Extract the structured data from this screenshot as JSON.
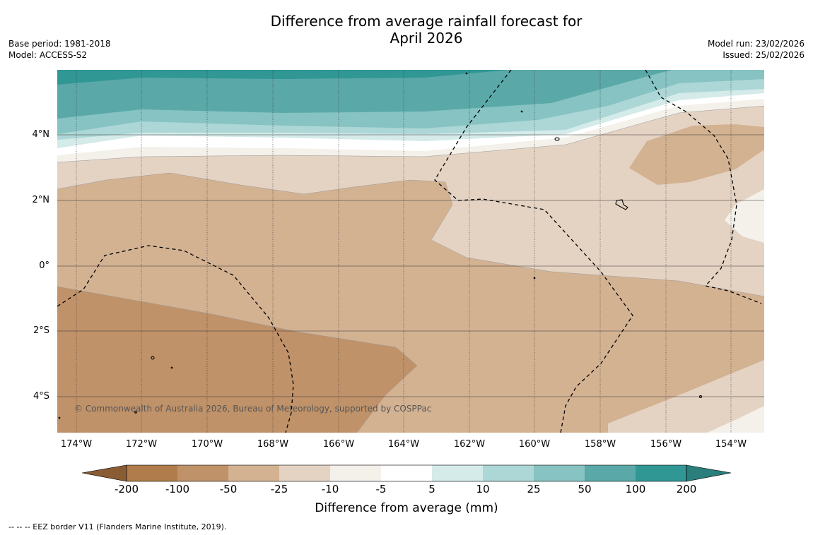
{
  "title_line1": "Difference from average rainfall forecast for",
  "title_line2": "April 2026",
  "meta_left": {
    "base_period": "Base period: 1981-2018",
    "model": "Model: ACCESS-S2"
  },
  "meta_right": {
    "model_run": "Model run: 23/02/2026",
    "issued": "Issued: 25/02/2026"
  },
  "lat_labels": [
    "4°N",
    "2°N",
    "0°",
    "2°S",
    "4°S"
  ],
  "lon_labels": [
    "174°W",
    "172°W",
    "170°W",
    "168°W",
    "166°W",
    "164°W",
    "162°W",
    "160°W",
    "158°W",
    "156°W",
    "154°W"
  ],
  "credit": "© Commonwealth of Australia 2026, Bureau of Meteorology, supported by COSPPac",
  "colorbar": {
    "title": "Difference from average (mm)",
    "tick_labels": [
      "-200",
      "-100",
      "-50",
      "-25",
      "-10",
      "-5",
      "5",
      "10",
      "25",
      "50",
      "100",
      "200"
    ],
    "colors": [
      "#8a5c34",
      "#b07c4b",
      "#c09269",
      "#d3b292",
      "#e4d3c3",
      "#f4f0ea",
      "#ffffff",
      "#d4ebea",
      "#acd7d6",
      "#86c3c2",
      "#5aa9a8",
      "#319795",
      "#2a7e7c"
    ]
  },
  "footer": "--  --  -- EEZ border V11 (Flanders Marine Institute, 2019).",
  "map_colors": {
    "land_dark": "#c09269",
    "land_mid": "#d3b292",
    "land_light": "#e4d3c3",
    "near_white": "#f4f0ea",
    "teal1": "#d4ebea",
    "teal2": "#acd7d6",
    "teal3": "#86c3c2",
    "teal4": "#5aa9a8",
    "teal5": "#319795"
  }
}
